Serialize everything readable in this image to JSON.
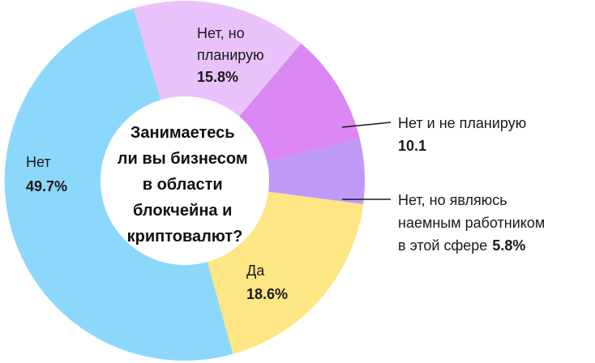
{
  "chart_data": {
    "type": "pie",
    "title": "Занимаетесь ли вы бизнесом в области блокчейна и криптовалют?",
    "title_lines": [
      "Занимаетесь",
      "ли вы бизнесом",
      "в области",
      "блокчейна и",
      "криптовалют?"
    ],
    "slices": [
      {
        "label_lines": [
          "Нет, но",
          "планирую"
        ],
        "value": 15.8,
        "value_text": "15.8%",
        "color": "#e9c2fb"
      },
      {
        "label_lines": [
          "Нет и не планирую"
        ],
        "value": 10.1,
        "value_text": "10.1",
        "color": "#db87f4"
      },
      {
        "label_lines": [
          "Нет, но являюсь",
          "наемным работником",
          "в этой сфере"
        ],
        "value": 5.8,
        "value_text": "5.8%",
        "color": "#bf9af8"
      },
      {
        "label_lines": [
          "Да"
        ],
        "value": 18.6,
        "value_text": "18.6%",
        "color": "#fde683"
      },
      {
        "label_lines": [
          "Нет"
        ],
        "value": 49.7,
        "value_text": "49.7%",
        "color": "#8cd8fc"
      }
    ]
  }
}
